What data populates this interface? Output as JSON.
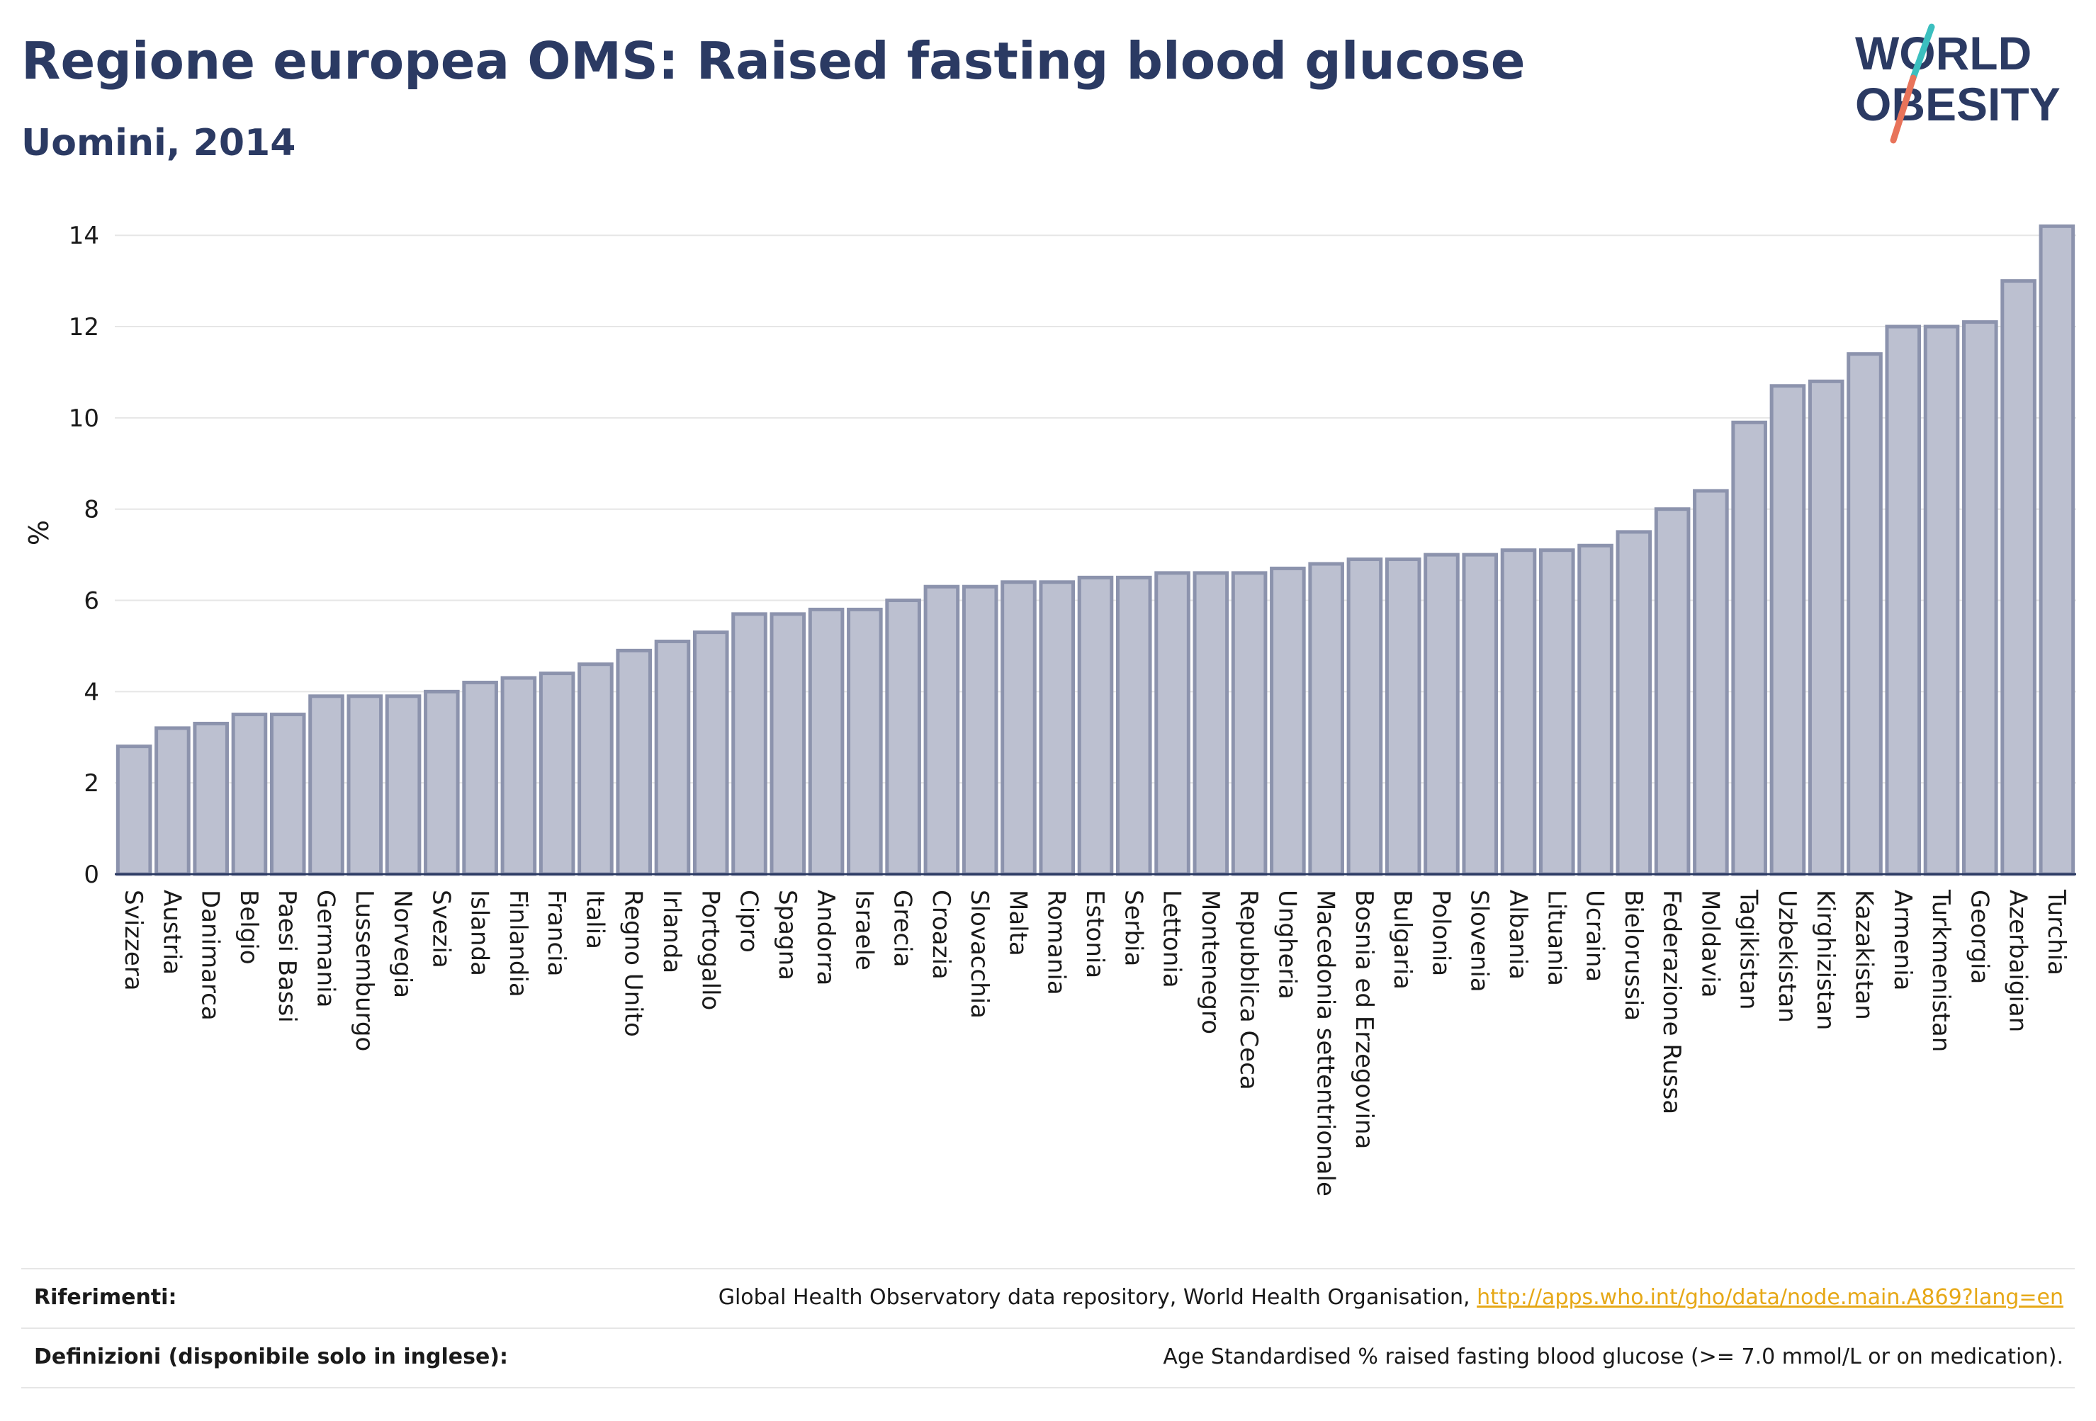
{
  "header": {
    "title": "Regione europea OMS: Raised fasting blood glucose",
    "subtitle": "Uomini, 2014"
  },
  "logo": {
    "line1": "WORLD",
    "line2": "OBESITY",
    "colors": {
      "text": "#2b3a63",
      "slash_top": "#3bbfbf",
      "slash_bottom": "#e8735a"
    }
  },
  "colors": {
    "bar_fill": "#bcc0d0",
    "bar_stroke": "#8c93ad",
    "title": "#2b3a63",
    "grid": "#e6e6e6",
    "link": "#e6a817"
  },
  "chart_data": {
    "type": "bar",
    "title": "Regione europea OMS: Raised fasting blood glucose",
    "subtitle": "Uomini, 2014",
    "ylabel": "%",
    "xlabel": "",
    "ylim": [
      0,
      14.5
    ],
    "yticks": [
      0,
      2,
      4,
      6,
      8,
      10,
      12,
      14
    ],
    "grid": true,
    "legend": "none",
    "categories": [
      "Svizzera",
      "Austria",
      "Danimarca",
      "Belgio",
      "Paesi Bassi",
      "Germania",
      "Lussemburgo",
      "Norvegia",
      "Svezia",
      "Islanda",
      "Finlandia",
      "Francia",
      "Italia",
      "Regno Unito",
      "Irlanda",
      "Portogallo",
      "Cipro",
      "Spagna",
      "Andorra",
      "Israele",
      "Grecia",
      "Croazia",
      "Slovacchia",
      "Malta",
      "Romania",
      "Estonia",
      "Serbia",
      "Lettonia",
      "Montenegro",
      "Repubblica Ceca",
      "Ungheria",
      "Macedonia settentrionale",
      "Bosnia ed Erzegovina",
      "Bulgaria",
      "Polonia",
      "Slovenia",
      "Albania",
      "Lituania",
      "Ucraina",
      "Bielorussia",
      "Federazione Russa",
      "Moldavia",
      "Tagikistan",
      "Uzbekistan",
      "Kirghizistan",
      "Kazakistan",
      "Armenia",
      "Turkmenistan",
      "Georgia",
      "Azerbaigian",
      "Turchia"
    ],
    "values": [
      2.8,
      3.2,
      3.3,
      3.5,
      3.5,
      3.9,
      3.9,
      3.9,
      4.0,
      4.2,
      4.3,
      4.4,
      4.6,
      4.9,
      5.1,
      5.3,
      5.7,
      5.7,
      5.8,
      5.8,
      6.0,
      6.3,
      6.3,
      6.4,
      6.4,
      6.5,
      6.5,
      6.6,
      6.6,
      6.6,
      6.7,
      6.8,
      6.9,
      6.9,
      7.0,
      7.0,
      7.1,
      7.1,
      7.2,
      7.5,
      8.0,
      8.4,
      9.9,
      10.7,
      10.8,
      11.4,
      12.0,
      12.0,
      12.1,
      13.0,
      14.2
    ]
  },
  "references": {
    "sources_label": "Riferimenti:",
    "sources_text": "Global Health Observatory data repository, World Health Organisation,",
    "sources_link": "http://apps.who.int/gho/data/node.main.A869?lang=en",
    "definitions_label": "Definizioni (disponibile solo in inglese):",
    "definitions_text": "Age Standardised % raised fasting blood glucose (>= 7.0 mmol/L or on medication)."
  }
}
